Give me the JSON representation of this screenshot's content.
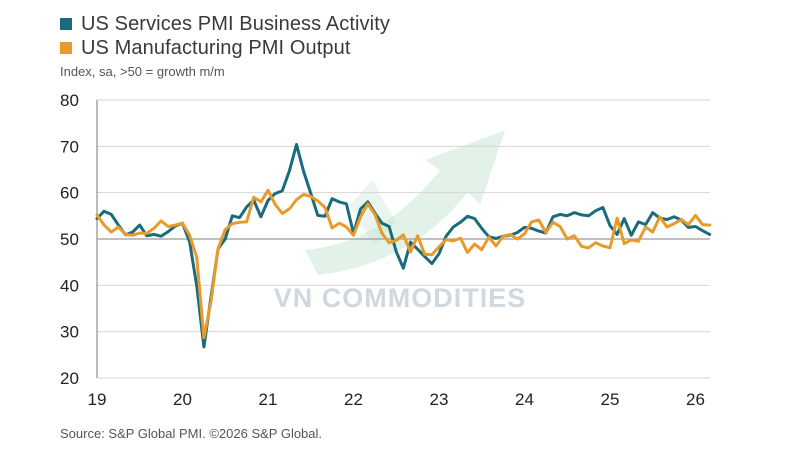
{
  "legend": {
    "items": [
      {
        "label": "US Services PMI Business Activity",
        "color": "#1a6b7c"
      },
      {
        "label": "US Manufacturing PMI Output",
        "color": "#e89a2a"
      }
    ]
  },
  "subtitle": "Index, sa, >50 = growth m/m",
  "source": "Source: S&P Global PMI. ©2026 S&P Global.",
  "watermark": "VN COMMODITIES",
  "chart_data": {
    "type": "line",
    "title": "",
    "xlabel": "",
    "ylabel": "Index, sa, >50 = growth m/m",
    "ylim": [
      20,
      80
    ],
    "yticks": [
      20,
      30,
      40,
      50,
      60,
      70,
      80
    ],
    "xticks": [
      "19",
      "20",
      "21",
      "22",
      "23",
      "24",
      "25",
      "26"
    ],
    "xlim": [
      2019.0,
      2026.17
    ],
    "grid": "horizontal",
    "reference_line": 50,
    "legend_position": "top-left",
    "x": [
      2019.0,
      2019.083,
      2019.167,
      2019.25,
      2019.333,
      2019.417,
      2019.5,
      2019.583,
      2019.667,
      2019.75,
      2019.833,
      2019.917,
      2020.0,
      2020.083,
      2020.167,
      2020.25,
      2020.333,
      2020.417,
      2020.5,
      2020.583,
      2020.667,
      2020.75,
      2020.833,
      2020.917,
      2021.0,
      2021.083,
      2021.167,
      2021.25,
      2021.333,
      2021.417,
      2021.5,
      2021.583,
      2021.667,
      2021.75,
      2021.833,
      2021.917,
      2022.0,
      2022.083,
      2022.167,
      2022.25,
      2022.333,
      2022.417,
      2022.5,
      2022.583,
      2022.667,
      2022.75,
      2022.833,
      2022.917,
      2023.0,
      2023.083,
      2023.167,
      2023.25,
      2023.333,
      2023.417,
      2023.5,
      2023.583,
      2023.667,
      2023.75,
      2023.833,
      2023.917,
      2024.0,
      2024.083,
      2024.167,
      2024.25,
      2024.333,
      2024.417,
      2024.5,
      2024.583,
      2024.667,
      2024.75,
      2024.833,
      2024.917,
      2025.0,
      2025.083,
      2025.167,
      2025.25,
      2025.333,
      2025.417,
      2025.5,
      2025.583,
      2025.667,
      2025.75,
      2025.833,
      2025.917,
      2026.0,
      2026.083,
      2026.167
    ],
    "series": [
      {
        "name": "US Services PMI Business Activity",
        "color": "#1a6b7c",
        "values": [
          54.4,
          56.0,
          55.3,
          53.0,
          50.9,
          51.5,
          53.0,
          50.7,
          51.0,
          50.6,
          51.6,
          52.8,
          53.4,
          49.4,
          39.8,
          26.7,
          37.5,
          47.9,
          50.0,
          55.0,
          54.6,
          56.9,
          58.4,
          54.8,
          58.3,
          59.8,
          60.4,
          64.7,
          70.4,
          64.6,
          59.9,
          55.1,
          54.9,
          58.7,
          58.0,
          57.6,
          51.2,
          56.5,
          58.0,
          55.6,
          53.4,
          52.7,
          47.3,
          43.7,
          49.3,
          47.8,
          46.2,
          44.7,
          46.8,
          50.6,
          52.6,
          53.6,
          54.9,
          54.4,
          52.3,
          50.5,
          50.1,
          50.6,
          50.8,
          51.4,
          52.5,
          52.3,
          51.7,
          51.3,
          54.8,
          55.3,
          55.0,
          55.7,
          55.2,
          55.0,
          56.1,
          56.8,
          52.9,
          51.0,
          54.4,
          50.8,
          53.7,
          53.1,
          55.7,
          54.5,
          54.2,
          54.8,
          54.1,
          52.5,
          52.7,
          51.8,
          51.0
        ]
      },
      {
        "name": "US Manufacturing PMI Output",
        "color": "#e89a2a",
        "values": [
          55.2,
          53.0,
          51.5,
          52.6,
          51.0,
          50.8,
          51.3,
          51.2,
          52.3,
          53.9,
          52.7,
          53.0,
          53.4,
          50.8,
          46.0,
          28.7,
          36.5,
          48.0,
          52.0,
          53.3,
          53.6,
          53.7,
          59.0,
          58.0,
          60.5,
          57.5,
          55.5,
          56.5,
          58.5,
          59.6,
          59.2,
          58.2,
          56.8,
          52.4,
          53.4,
          52.6,
          50.8,
          54.8,
          57.6,
          55.3,
          51.2,
          49.2,
          49.7,
          50.9,
          47.2,
          50.7,
          46.7,
          46.6,
          48.3,
          49.9,
          49.6,
          50.2,
          47.1,
          48.9,
          47.7,
          50.4,
          48.5,
          50.6,
          51.0,
          50.0,
          51.1,
          53.7,
          54.1,
          51.4,
          53.6,
          52.7,
          50.0,
          50.7,
          48.4,
          48.1,
          49.2,
          48.5,
          48.1,
          54.5,
          49.0,
          49.8,
          49.5,
          52.6,
          51.5,
          54.8,
          52.6,
          53.3,
          54.2,
          53.1,
          55.1,
          53.1,
          53.0
        ]
      }
    ]
  }
}
